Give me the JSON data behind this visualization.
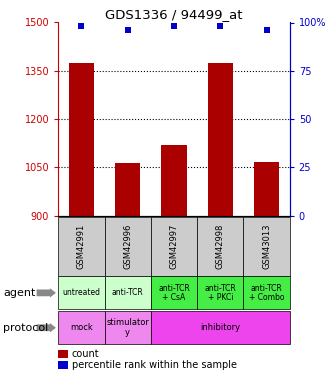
{
  "title": "GDS1336 / 94499_at",
  "samples": [
    "GSM42991",
    "GSM42996",
    "GSM42997",
    "GSM42998",
    "GSM43013"
  ],
  "counts": [
    1375,
    1063,
    1120,
    1375,
    1068
  ],
  "percentiles": [
    98,
    96,
    98,
    98,
    96
  ],
  "ylim_left": [
    900,
    1500
  ],
  "ylim_right": [
    0,
    100
  ],
  "yticks_left": [
    900,
    1050,
    1200,
    1350,
    1500
  ],
  "yticks_right": [
    0,
    25,
    50,
    75,
    100
  ],
  "bar_color": "#aa0000",
  "dot_color": "#0000cc",
  "agent_labels": [
    "untreated",
    "anti-TCR",
    "anti-TCR\n+ CsA",
    "anti-TCR\n+ PKCi",
    "anti-TCR\n+ Combo"
  ],
  "agent_light_color": "#ccffcc",
  "agent_dark_color": "#44ee44",
  "protocol_light_color": "#ee88ee",
  "protocol_dark_color": "#ee44ee",
  "agent_row_label": "agent",
  "protocol_row_label": "protocol",
  "legend_count_label": "count",
  "legend_pct_label": "percentile rank within the sample",
  "left_axis_color": "#cc0000",
  "right_axis_color": "#0000cc",
  "sample_bg_color": "#cccccc"
}
